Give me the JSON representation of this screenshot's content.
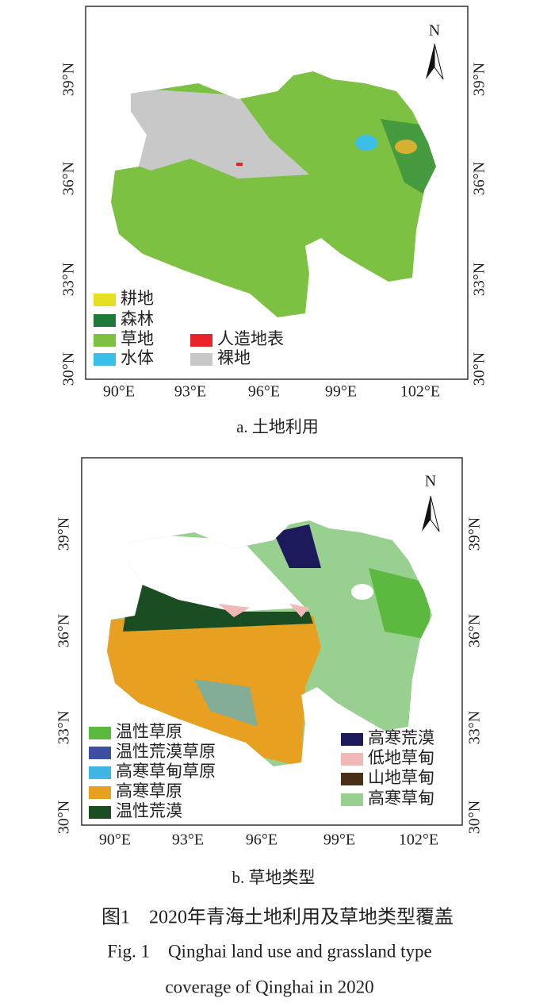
{
  "panels": [
    {
      "xticks": [
        "90°E",
        "93°E",
        "96°E",
        "99°E",
        "102°E"
      ],
      "yticks": [
        "39°N",
        "36°N",
        "33°N",
        "30°N"
      ],
      "north": "N",
      "legend": [
        {
          "label": "耕地",
          "color": "#e6e023"
        },
        {
          "label": "森林",
          "color": "#1e7a3a"
        },
        {
          "label": "草地",
          "color": "#7dc142"
        },
        {
          "label": "水体",
          "color": "#3bbfe8"
        },
        {
          "label": "人造地表",
          "color": "#e8242a"
        },
        {
          "label": "裸地",
          "color": "#c8c8c8"
        }
      ],
      "caption": "a. 土地利用"
    },
    {
      "xticks": [
        "90°E",
        "93°E",
        "96°E",
        "99°E",
        "102°E"
      ],
      "yticks": [
        "39°N",
        "36°N",
        "33°N",
        "30°N"
      ],
      "north": "N",
      "legend": [
        {
          "label": "温性草原",
          "color": "#5cb940"
        },
        {
          "label": "温性荒漠草原",
          "color": "#3c4fa0"
        },
        {
          "label": "高寒草甸草原",
          "color": "#3fb6e6"
        },
        {
          "label": "高寒草原",
          "color": "#e8a020"
        },
        {
          "label": "温性荒漠",
          "color": "#1a4d22"
        },
        {
          "label": "高寒荒漠",
          "color": "#1c1a5a"
        },
        {
          "label": "低地草甸",
          "color": "#f2b8b8"
        },
        {
          "label": "山地草甸",
          "color": "#4a3018"
        },
        {
          "label": "高寒草甸",
          "color": "#98d090"
        }
      ],
      "caption": "b. 草地类型"
    }
  ],
  "figure_caption_cn": "图1　2020年青海土地利用及草地类型覆盖",
  "figure_caption_en": [
    "Fig. 1　Qinghai land use and grassland type",
    "coverage of Qinghai in 2020"
  ]
}
